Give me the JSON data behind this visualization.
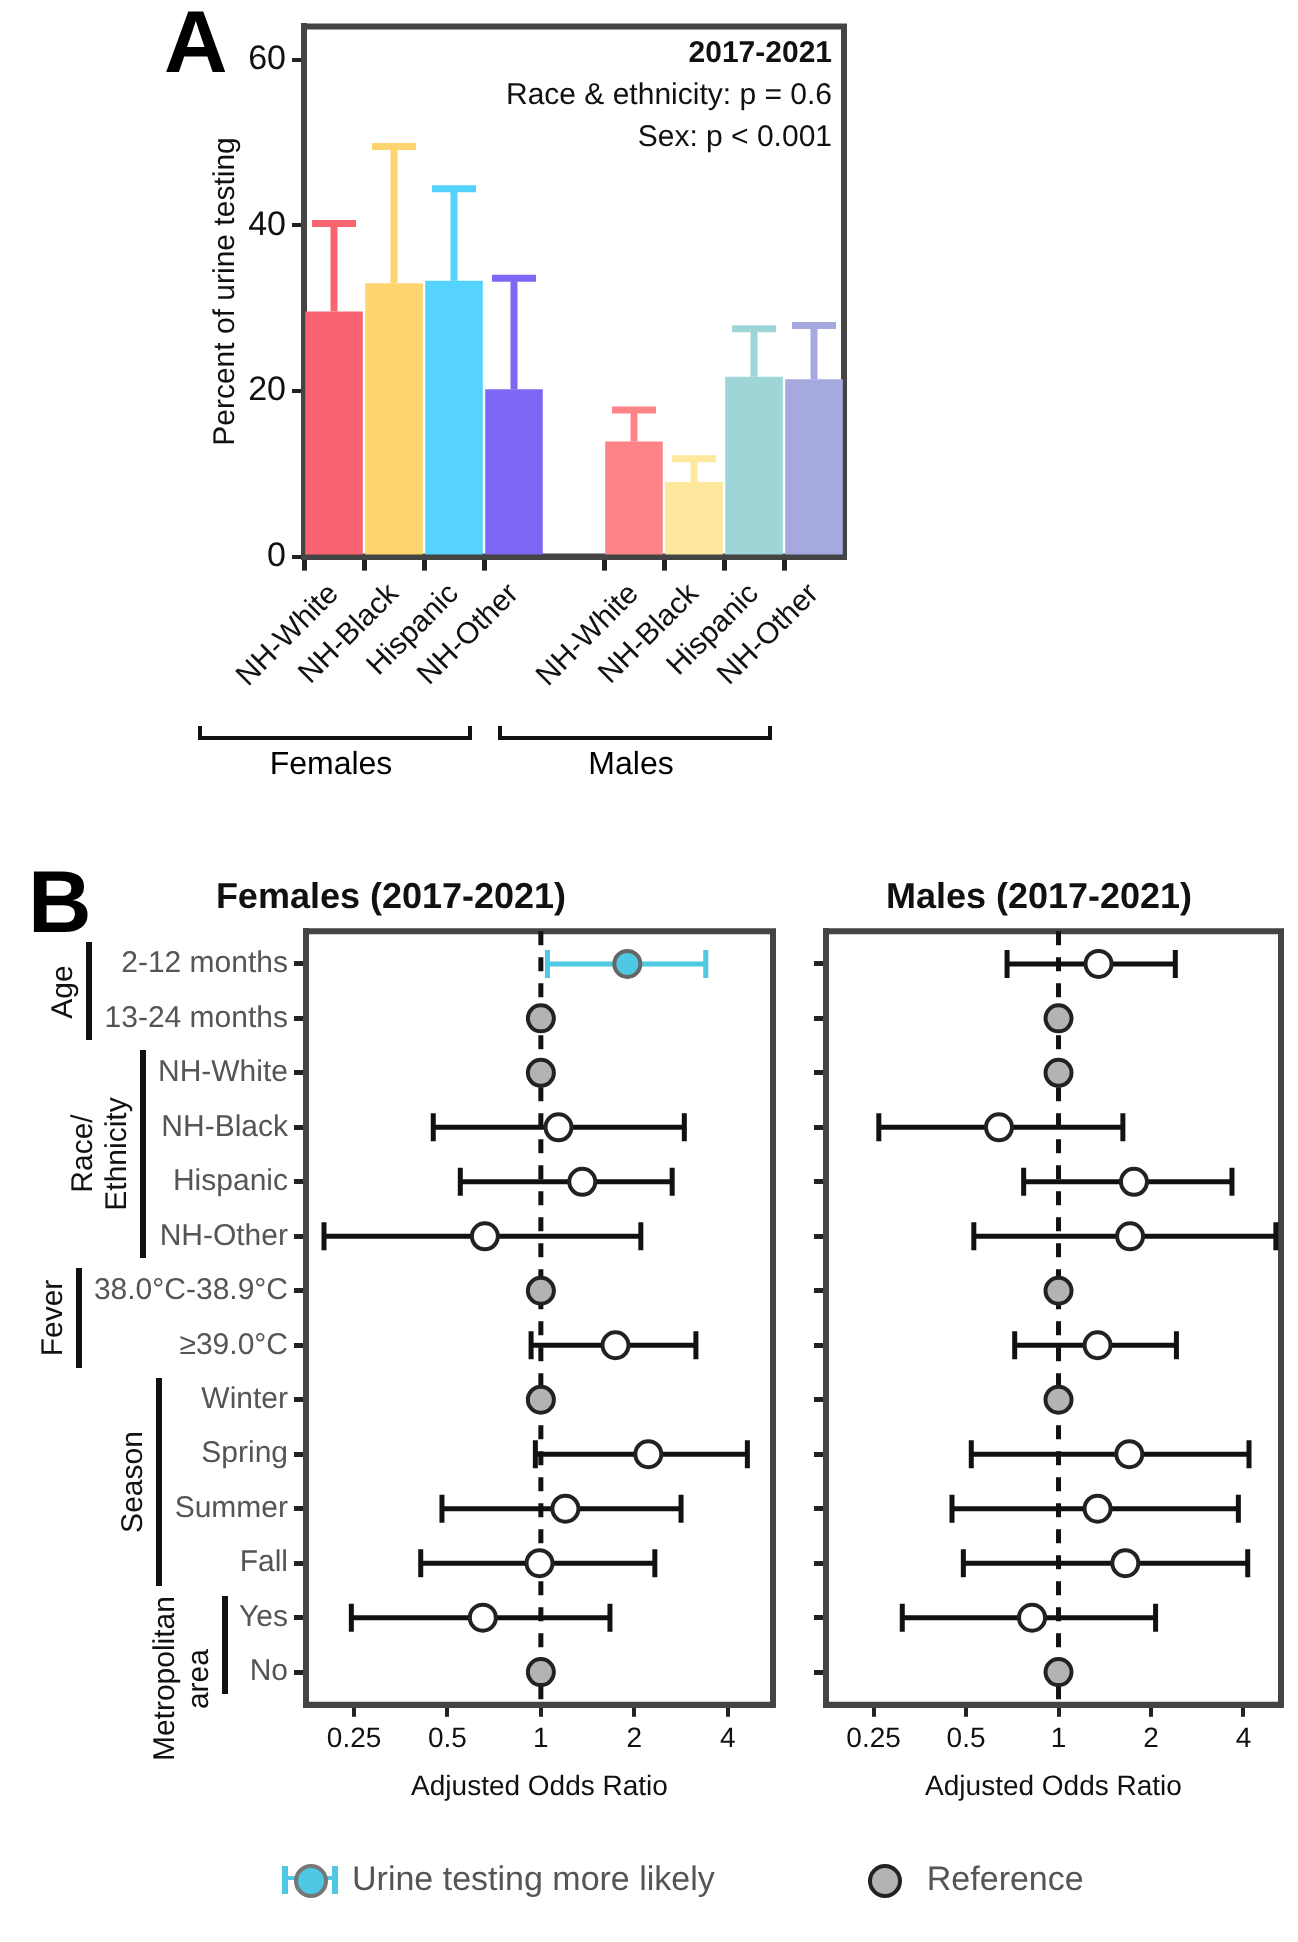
{
  "chart_data": [
    {
      "type": "bar",
      "ylabel": "Percent of urine testing",
      "categories": [
        "NH-White",
        "NH-Black",
        "Hispanic",
        "NH-Other",
        null,
        "NH-White",
        "NH-Black",
        "Hispanic",
        "NH-Other"
      ],
      "values": [
        29.6,
        33,
        33.3,
        20.2,
        null,
        13.9,
        9,
        21.7,
        21.4
      ],
      "colors": [
        "#f96470",
        "#fed46e",
        "#56d3fc",
        "#7f67f5",
        "#ffffff",
        "#fc8489",
        "#fde89e",
        "#9ed6d8",
        "#a6a9dd"
      ],
      "errors": [
        [
          29.6,
          40.2
        ],
        [
          33,
          49.5
        ],
        [
          33.3,
          44.4
        ],
        [
          20.2,
          33.6
        ],
        null,
        [
          13.9,
          17.7
        ],
        [
          9,
          11.8
        ],
        [
          21.7,
          27.5
        ],
        [
          21.4,
          27.9
        ]
      ],
      "ylim": [
        0,
        64
      ],
      "yticks": [
        0,
        20,
        40,
        60
      ],
      "grid": false,
      "annotations": [
        "A",
        "2017-2021",
        "Race & ethnicity: p = 0.6",
        "Sex: p < 0.001",
        "Females",
        "Males"
      ]
    },
    {
      "type": "scatter",
      "orientation": "horizontal",
      "title": "Females (2017-2021)",
      "xlabel": "Adjusted Odds Ratio",
      "categories": [
        "2-12 months",
        "13-24 months",
        "NH-White",
        "NH-Black",
        "Hispanic",
        "NH-Other",
        "38.0°C-38.9°C",
        "≥39.0°C",
        "Winter",
        "Spring",
        "Summer",
        "Fall",
        "Yes",
        "No"
      ],
      "series": [
        {
          "name": "Urine testing more likely",
          "color": "#4fc8e3",
          "values": [
            1.9,
            null,
            null,
            null,
            null,
            null,
            null,
            null,
            null,
            null,
            null,
            null,
            null,
            null
          ],
          "errors": [
            [
              1.05,
              3.4
            ],
            null,
            null,
            null,
            null,
            null,
            null,
            null,
            null,
            null,
            null,
            null,
            null,
            null
          ]
        },
        {
          "name": "Reference",
          "color": "#b3b3b3",
          "values": [
            null,
            1,
            1,
            null,
            null,
            null,
            1,
            null,
            1,
            null,
            null,
            null,
            null,
            1
          ]
        },
        {
          "color": "#ffffff",
          "values": [
            null,
            null,
            null,
            1.14,
            1.36,
            0.66,
            null,
            1.74,
            null,
            2.22,
            1.2,
            0.99,
            0.65,
            null
          ],
          "errors": [
            null,
            null,
            null,
            [
              0.45,
              2.9
            ],
            [
              0.55,
              2.65
            ],
            [
              0.2,
              2.1
            ],
            null,
            [
              0.93,
              3.16
            ],
            null,
            [
              0.96,
              4.63
            ],
            [
              0.48,
              2.83
            ],
            [
              0.41,
              2.33
            ],
            [
              0.245,
              1.67
            ],
            null
          ]
        }
      ],
      "log": "x",
      "xlim": [
        0.175,
        5.6
      ],
      "xticks": [
        0.25,
        0.5,
        1,
        2,
        4
      ],
      "grid": false,
      "legend": "bottom",
      "ref_lines": [
        {
          "axis": "x",
          "value": 1,
          "line_style": "dashed"
        }
      ],
      "annotations": [
        "B",
        "Age",
        "Race/\nEthnicity",
        "Fever",
        "Season",
        "Metropolitan\narea"
      ]
    },
    {
      "type": "scatter",
      "orientation": "horizontal",
      "title": "Males (2017-2021)",
      "xlabel": "Adjusted Odds Ratio",
      "categories": [
        null,
        null,
        null,
        null,
        null,
        null,
        null,
        null,
        null,
        null,
        null,
        null,
        null,
        null
      ],
      "series": [
        {
          "color": "#b3b3b3",
          "values": [
            null,
            1,
            1,
            null,
            null,
            null,
            1,
            null,
            1,
            null,
            null,
            null,
            null,
            1
          ]
        },
        {
          "color": "#ffffff",
          "values": [
            1.35,
            null,
            null,
            0.64,
            1.76,
            1.71,
            null,
            1.34,
            null,
            1.7,
            1.34,
            1.65,
            0.82,
            null
          ],
          "errors": [
            [
              0.68,
              2.4
            ],
            null,
            null,
            [
              0.26,
              1.62
            ],
            [
              0.77,
              3.67
            ],
            [
              0.53,
              5.1
            ],
            null,
            [
              0.72,
              2.42
            ],
            null,
            [
              0.52,
              4.17
            ],
            [
              0.45,
              3.85
            ],
            [
              0.49,
              4.13
            ],
            [
              0.31,
              2.07
            ],
            null
          ]
        }
      ],
      "log": "x",
      "xlim": [
        0.175,
        5.3
      ],
      "xticks": [
        0.25,
        0.5,
        1,
        2,
        4
      ],
      "grid": false,
      "tick_labels": "x",
      "ref_lines": [
        {
          "axis": "x",
          "value": 1,
          "line_style": "dashed"
        }
      ]
    }
  ]
}
